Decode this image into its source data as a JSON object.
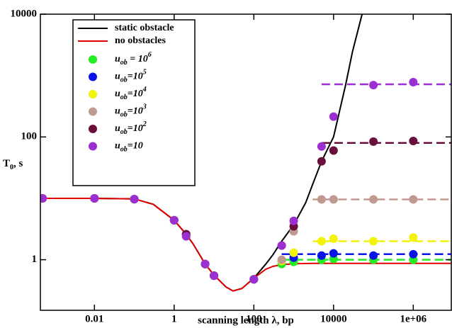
{
  "chart_data": {
    "type": "scatter",
    "xlabel": "scanning length λ, bp",
    "ylabel": "T_0, s",
    "xscale": "log",
    "yscale": "log",
    "xlim": [
      0.00044,
      9000000
    ],
    "ylim": [
      0.15,
      10000
    ],
    "xticks": [
      0.01,
      1,
      100,
      10000,
      {
        "value": 1000000,
        "label": "1e+06"
      }
    ],
    "yticks": [
      1,
      100,
      10000
    ],
    "legend": "upper left",
    "lines": [
      {
        "name": "static obstacle",
        "color": "#000000",
        "x": [
          0.00044,
          0.01,
          0.1,
          0.3,
          1,
          2,
          3,
          6,
          10,
          20,
          30,
          50,
          100,
          200,
          300,
          500,
          1000,
          2000,
          3000,
          5000,
          10000,
          20000,
          30000,
          52000
        ],
        "values": [
          10,
          10,
          9.8,
          8,
          4.4,
          2.6,
          1.8,
          0.85,
          0.56,
          0.36,
          0.31,
          0.34,
          0.5,
          0.85,
          1.2,
          2,
          3.7,
          8.5,
          17,
          40,
          100,
          700,
          2500,
          10000
        ]
      },
      {
        "name": "no obstacles",
        "color": "#e00000",
        "x": [
          0.00044,
          0.01,
          0.1,
          0.3,
          1,
          2,
          3,
          6,
          10,
          20,
          30,
          50,
          100,
          200,
          300,
          500,
          1000,
          3000,
          9000000
        ],
        "values": [
          10,
          10,
          9.8,
          8,
          4.4,
          2.6,
          1.8,
          0.85,
          0.56,
          0.36,
          0.31,
          0.34,
          0.5,
          0.7,
          0.78,
          0.83,
          0.86,
          0.87,
          0.87
        ]
      }
    ],
    "x": [
      0.0005,
      0.01,
      0.1,
      1,
      2,
      6,
      10,
      100,
      500,
      1000,
      5000,
      10000,
      100000,
      1000000
    ],
    "series": [
      {
        "name": "u_ob = 10^6",
        "color": "#22ee22",
        "values": [
          10,
          10,
          9.7,
          4.4,
          2.6,
          0.85,
          0.55,
          0.48,
          0.85,
          0.92,
          1.0,
          1.03,
          1.0,
          1.0
        ],
        "plateau": {
          "x": [
            500,
            9000000
          ],
          "values": [
            1.0,
            1.0
          ]
        }
      },
      {
        "name": "u_ob=10^5",
        "color": "#0a14e6",
        "values": [
          10,
          10,
          9.7,
          4.4,
          2.6,
          0.85,
          0.55,
          0.48,
          0.95,
          1.08,
          1.17,
          1.27,
          1.17,
          1.23
        ],
        "plateau": {
          "x": [
            500,
            9000000
          ],
          "values": [
            1.23,
            1.23
          ]
        }
      },
      {
        "name": "u_ob=10^4",
        "color": "#f2f20a",
        "values": [
          10,
          10,
          9.7,
          4.4,
          2.6,
          0.85,
          0.55,
          0.48,
          0.95,
          1.3,
          2.0,
          2.2,
          2.0,
          2.3
        ],
        "plateau": {
          "x": [
            3000,
            9000000
          ],
          "values": [
            2.0,
            2.0
          ]
        }
      },
      {
        "name": "u_ob=10^3",
        "color": "#c09a90",
        "values": [
          10,
          10,
          9.7,
          4.4,
          2.6,
          0.85,
          0.55,
          0.48,
          1.0,
          2.9,
          9.6,
          9.6,
          9.6,
          9.6
        ],
        "plateau": {
          "x": [
            3000,
            9000000
          ],
          "values": [
            9.6,
            9.6
          ]
        }
      },
      {
        "name": "u_ob=10^2",
        "color": "#6a0f3c",
        "values": [
          10,
          10,
          9.7,
          4.4,
          2.6,
          0.85,
          0.55,
          0.48,
          1.7,
          3.5,
          40,
          60,
          84,
          86
        ],
        "plateau": {
          "x": [
            5000,
            9000000
          ],
          "values": [
            80,
            80
          ]
        }
      },
      {
        "name": "u_ob=10",
        "color": "#9b2fd2",
        "values": [
          10,
          10,
          9.7,
          4.4,
          2.4,
          0.85,
          0.55,
          0.48,
          1.7,
          4.3,
          70,
          214,
          700,
          780
        ],
        "plateau": {
          "x": [
            5000,
            9000000
          ],
          "values": [
            720,
            720
          ]
        }
      }
    ]
  }
}
